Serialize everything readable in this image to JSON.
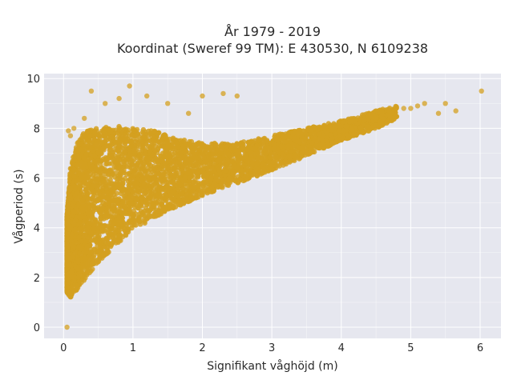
{
  "title_line1": "År 1979 - 2019",
  "title_line2": "Koordinat (Sweref 99 TM): E 430530, N 6109238",
  "colors": {
    "plot_bg": "#e6e7ef",
    "grid": "#ffffff",
    "marker": "#d4a020"
  },
  "chart_data": {
    "type": "scatter",
    "title": "År 1979 - 2019 / Koordinat (Sweref 99 TM): E 430530, N 6109238",
    "xlabel": "Signifikant våghöjd (m)",
    "ylabel": "Vågperiod (s)",
    "xlim": [
      -0.28,
      6.3
    ],
    "ylim": [
      -0.45,
      10.2
    ],
    "xticks": [
      "0",
      "1",
      "2",
      "3",
      "4",
      "5",
      "6"
    ],
    "yticks": [
      "0",
      "2",
      "4",
      "6",
      "8",
      "10"
    ],
    "grid": true,
    "legend": "none",
    "series": [
      {
        "description": "dense band",
        "envelope_x": [
          0.05,
          0.1,
          0.2,
          0.3,
          0.5,
          0.75,
          1.0,
          1.3,
          1.6,
          2.0,
          2.5,
          3.0,
          3.5,
          4.0,
          4.5,
          4.8
        ],
        "envelope_y_low": [
          1.4,
          1.2,
          1.5,
          1.9,
          2.6,
          3.3,
          3.9,
          4.4,
          4.8,
          5.3,
          5.8,
          6.3,
          6.9,
          7.5,
          8.0,
          8.4
        ],
        "envelope_y_high": [
          4.5,
          6.5,
          7.4,
          7.9,
          8.0,
          8.1,
          8.0,
          7.9,
          7.6,
          7.4,
          7.4,
          7.7,
          8.0,
          8.3,
          8.7,
          8.9
        ]
      },
      {
        "description": "outliers",
        "x": [
          0.05,
          0.4,
          0.8,
          0.95,
          1.2,
          0.6,
          1.5,
          2.0,
          2.3,
          2.5,
          1.8,
          0.3,
          4.5,
          5.0,
          5.1,
          5.2,
          5.4,
          5.5,
          5.65,
          6.02,
          4.7,
          4.9,
          0.07,
          0.1,
          0.15,
          3.9,
          4.2,
          4.4
        ],
        "y": [
          0.0,
          9.5,
          9.2,
          9.7,
          9.3,
          9.0,
          9.0,
          9.3,
          9.4,
          9.3,
          8.6,
          8.4,
          8.7,
          8.8,
          8.9,
          9.0,
          8.6,
          9.0,
          8.7,
          9.5,
          8.5,
          8.8,
          7.9,
          7.7,
          8.0,
          8.0,
          8.3,
          8.6
        ]
      }
    ]
  }
}
